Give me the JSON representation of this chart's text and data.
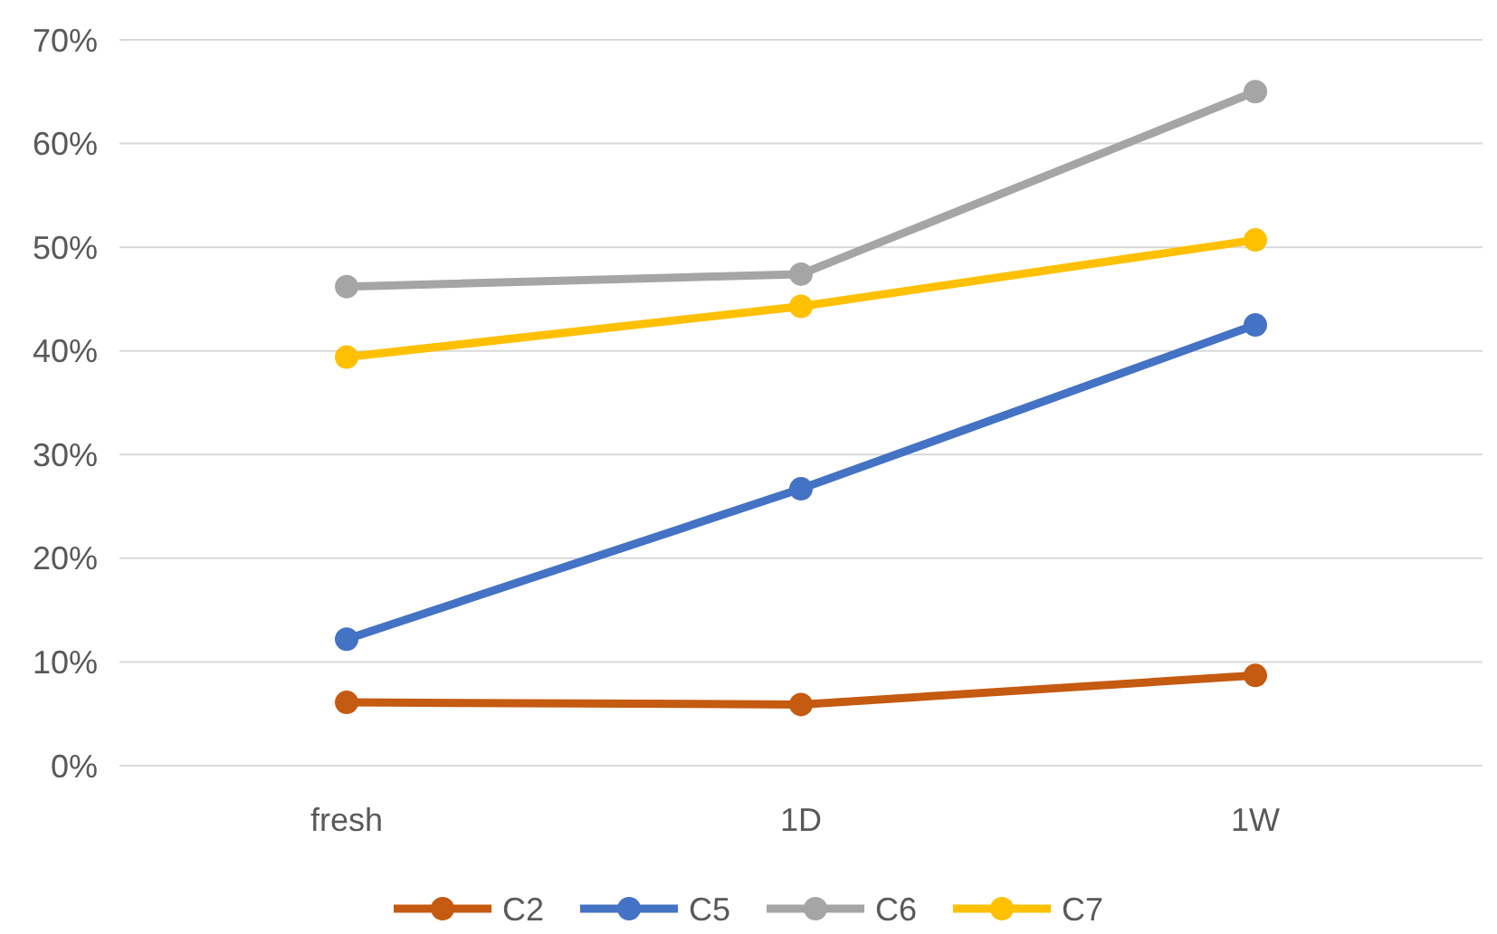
{
  "chart_data": {
    "type": "line",
    "categories": [
      "fresh",
      "1D",
      "1W"
    ],
    "series": [
      {
        "name": "C2",
        "color": "#c55a11",
        "values": [
          6.1,
          5.9,
          8.7
        ]
      },
      {
        "name": "C5",
        "color": "#4472c4",
        "values": [
          12.2,
          26.7,
          42.5
        ]
      },
      {
        "name": "C6",
        "color": "#a5a5a5",
        "values": [
          46.2,
          47.4,
          65.0
        ]
      },
      {
        "name": "C7",
        "color": "#ffc000",
        "values": [
          39.4,
          44.3,
          50.7
        ]
      }
    ],
    "ylim": [
      0,
      70
    ],
    "yticks": [
      {
        "value": 0,
        "label": "0%"
      },
      {
        "value": 10,
        "label": "10%"
      },
      {
        "value": 20,
        "label": "20%"
      },
      {
        "value": 30,
        "label": "30%"
      },
      {
        "value": 40,
        "label": "40%"
      },
      {
        "value": 50,
        "label": "50%"
      },
      {
        "value": 60,
        "label": "60%"
      },
      {
        "value": 70,
        "label": "70%"
      }
    ],
    "grid": "y",
    "legend": "bottom",
    "marker": "circle",
    "line_style": "solid"
  }
}
